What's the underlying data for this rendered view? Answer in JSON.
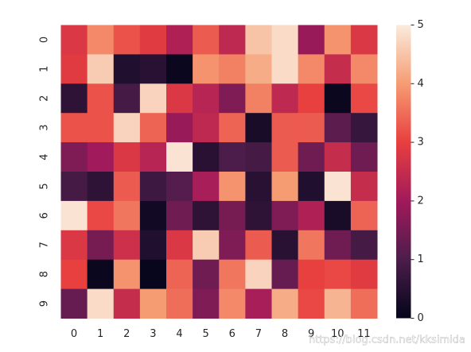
{
  "chart_data": {
    "type": "heatmap",
    "x": [
      "0",
      "1",
      "2",
      "3",
      "4",
      "5",
      "6",
      "7",
      "8",
      "9",
      "10",
      "11"
    ],
    "y": [
      "0",
      "1",
      "2",
      "3",
      "4",
      "5",
      "6",
      "7",
      "8",
      "9"
    ],
    "values": [
      [
        2.8,
        3.8,
        3.2,
        2.9,
        2.2,
        3.3,
        2.4,
        4.5,
        4.8,
        1.9,
        3.9,
        2.8
      ],
      [
        2.9,
        4.6,
        0.4,
        0.5,
        0.1,
        3.9,
        3.7,
        4.2,
        4.8,
        3.8,
        2.5,
        3.8
      ],
      [
        0.6,
        3.2,
        0.9,
        4.7,
        2.8,
        2.3,
        1.6,
        3.7,
        2.4,
        3.0,
        0.1,
        3.1
      ],
      [
        3.2,
        3.2,
        4.7,
        3.4,
        1.9,
        2.4,
        3.4,
        0.3,
        3.3,
        3.3,
        1.2,
        0.7
      ],
      [
        1.6,
        2.0,
        2.8,
        2.3,
        4.9,
        0.5,
        1.0,
        0.9,
        3.3,
        1.4,
        2.5,
        1.4
      ],
      [
        0.9,
        0.6,
        3.3,
        0.8,
        1.1,
        2.1,
        3.9,
        0.5,
        4.0,
        0.4,
        4.9,
        2.5
      ],
      [
        4.9,
        3.1,
        3.6,
        0.2,
        1.4,
        0.6,
        1.5,
        0.6,
        1.6,
        2.2,
        0.3,
        3.4
      ],
      [
        2.8,
        1.5,
        2.6,
        0.4,
        2.8,
        4.6,
        1.6,
        3.3,
        0.5,
        3.6,
        1.4,
        0.9
      ],
      [
        3.0,
        0.1,
        3.9,
        0.05,
        3.4,
        1.4,
        3.6,
        4.7,
        1.3,
        3.0,
        3.1,
        2.9
      ],
      [
        1.3,
        4.8,
        2.5,
        4.0,
        3.5,
        1.6,
        3.8,
        2.1,
        4.2,
        3.1,
        4.3,
        3.5
      ]
    ],
    "clim": [
      0,
      5
    ],
    "cticks": [
      0,
      1,
      2,
      3,
      4,
      5
    ],
    "colormap": [
      "#03051a",
      "#4c1d4b",
      "#a11a5b",
      "#e83f3f",
      "#f69c73",
      "#faebdd"
    ],
    "watermark": "https://blog.csdn.net/kksimida"
  }
}
